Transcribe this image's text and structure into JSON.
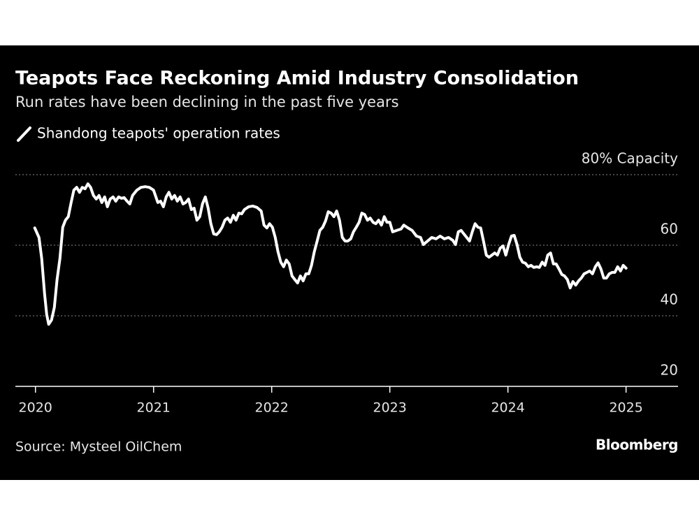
{
  "chart_data": {
    "type": "line",
    "title": "Teapots Face Reckoning Amid Industry Consolidation",
    "subtitle": "Run rates have been declining in the past five years",
    "source": "Source: Mysteel OilChem",
    "logo": "Bloomberg",
    "xlim": [
      2019.83,
      2025.44
    ],
    "xticks": [
      2020,
      2021,
      2022,
      2023,
      2024,
      2025
    ],
    "ylim": [
      20,
      80
    ],
    "yticks": [
      20,
      40,
      60,
      {
        "value": 80,
        "label": "80% Capacity"
      }
    ],
    "grid": true,
    "x": [
      2019.994,
      2020.03,
      2020.053,
      2020.077,
      2020.095,
      2020.112,
      2020.136,
      2020.16,
      2020.183,
      2020.207,
      2020.231,
      2020.254,
      2020.278,
      2020.302,
      2020.325,
      2020.349,
      2020.373,
      2020.396,
      2020.42,
      2020.444,
      2020.467,
      2020.491,
      2020.515,
      2020.538,
      2020.562,
      2020.586,
      2020.609,
      2020.633,
      2020.657,
      2020.68,
      2020.704,
      2020.728,
      2020.751,
      2020.775,
      2020.799,
      2020.822,
      2020.858,
      2020.893,
      2020.929,
      2020.964,
      2021.0,
      2021.036,
      2021.059,
      2021.083,
      2021.107,
      2021.13,
      2021.154,
      2021.178,
      2021.201,
      2021.225,
      2021.249,
      2021.272,
      2021.296,
      2021.32,
      2021.343,
      2021.367,
      2021.391,
      2021.414,
      2021.438,
      2021.462,
      2021.485,
      2021.509,
      2021.533,
      2021.556,
      2021.58,
      2021.604,
      2021.627,
      2021.651,
      2021.675,
      2021.698,
      2021.722,
      2021.746,
      2021.769,
      2021.805,
      2021.84,
      2021.876,
      2021.911,
      2021.935,
      2021.959,
      2021.982,
      2022.006,
      2022.03,
      2022.053,
      2022.077,
      2022.101,
      2022.124,
      2022.148,
      2022.172,
      2022.195,
      2022.219,
      2022.243,
      2022.266,
      2022.29,
      2022.314,
      2022.337,
      2022.361,
      2022.385,
      2022.408,
      2022.432,
      2022.456,
      2022.479,
      2022.503,
      2022.527,
      2022.55,
      2022.574,
      2022.598,
      2022.621,
      2022.645,
      2022.669,
      2022.692,
      2022.716,
      2022.74,
      2022.763,
      2022.787,
      2022.811,
      2022.834,
      2022.858,
      2022.882,
      2022.905,
      2022.929,
      2022.953,
      2022.976,
      2023.0,
      2023.024,
      2023.059,
      2023.095,
      2023.118,
      2023.154,
      2023.189,
      2023.225,
      2023.26,
      2023.284,
      2023.32,
      2023.355,
      2023.391,
      2023.426,
      2023.462,
      2023.497,
      2023.533,
      2023.556,
      2023.58,
      2023.604,
      2023.627,
      2023.651,
      2023.675,
      2023.698,
      2023.722,
      2023.746,
      2023.769,
      2023.793,
      2023.817,
      2023.84,
      2023.864,
      2023.888,
      2023.911,
      2023.935,
      2023.959,
      2023.982,
      2024.006,
      2024.03,
      2024.053,
      2024.077,
      2024.101,
      2024.124,
      2024.148,
      2024.172,
      2024.195,
      2024.219,
      2024.243,
      2024.266,
      2024.29,
      2024.314,
      2024.337,
      2024.361,
      2024.385,
      2024.408,
      2024.432,
      2024.456,
      2024.479,
      2024.503,
      2024.527,
      2024.55,
      2024.574,
      2024.598,
      2024.621,
      2024.645,
      2024.669,
      2024.692,
      2024.716,
      2024.74,
      2024.763,
      2024.787,
      2024.811,
      2024.834,
      2024.858,
      2024.882,
      2024.905,
      2024.929,
      2024.953,
      2024.976,
      2025.0
    ],
    "series": [
      {
        "name": "Shandong teapots' operation rates",
        "color": "#ffffff",
        "values": [
          64.9,
          62.2,
          56.2,
          46.3,
          40.4,
          37.6,
          38.8,
          42.4,
          50.3,
          56.2,
          65.1,
          67.1,
          68.1,
          72.1,
          75.6,
          76.4,
          75.0,
          76.4,
          76.0,
          77.4,
          76.4,
          74.1,
          73.1,
          74.1,
          72.1,
          73.7,
          70.9,
          73.1,
          73.7,
          72.5,
          73.7,
          73.3,
          73.5,
          72.5,
          71.7,
          74.1,
          75.6,
          76.4,
          76.6,
          76.4,
          75.6,
          72.1,
          72.5,
          70.9,
          73.7,
          75.0,
          73.1,
          74.1,
          72.5,
          73.7,
          71.7,
          72.1,
          73.1,
          70.1,
          70.5,
          67.1,
          68.1,
          71.7,
          73.7,
          70.5,
          66.1,
          63.2,
          63.0,
          63.8,
          65.1,
          67.1,
          67.7,
          66.5,
          68.5,
          67.1,
          69.1,
          68.9,
          70.1,
          70.9,
          71.1,
          70.7,
          69.7,
          65.7,
          64.9,
          66.1,
          65.1,
          62.2,
          58.2,
          55.2,
          53.9,
          55.8,
          54.7,
          51.3,
          50.3,
          49.3,
          51.3,
          49.9,
          51.9,
          51.9,
          54.3,
          58.2,
          61.2,
          64.2,
          65.1,
          66.9,
          69.5,
          69.1,
          68.1,
          69.7,
          67.1,
          62.2,
          61.2,
          61.2,
          61.8,
          63.8,
          65.1,
          66.5,
          69.1,
          68.7,
          67.1,
          67.7,
          66.5,
          66.1,
          67.1,
          65.7,
          68.1,
          66.5,
          66.5,
          63.8,
          64.2,
          64.6,
          65.7,
          64.9,
          64.2,
          62.6,
          62.2,
          60.2,
          61.2,
          62.2,
          61.8,
          62.6,
          61.8,
          62.2,
          61.4,
          60.2,
          63.8,
          64.2,
          63.2,
          62.2,
          61.2,
          63.8,
          66.1,
          65.1,
          64.9,
          61.2,
          57.2,
          56.6,
          57.2,
          57.8,
          57.2,
          59.2,
          59.8,
          57.2,
          60.2,
          62.6,
          62.8,
          60.2,
          56.6,
          55.2,
          54.9,
          53.9,
          54.3,
          53.7,
          53.9,
          53.7,
          55.2,
          54.3,
          57.2,
          57.8,
          54.7,
          54.7,
          53.3,
          51.7,
          51.3,
          50.3,
          47.9,
          49.7,
          48.7,
          49.9,
          50.7,
          51.9,
          52.3,
          52.7,
          51.9,
          53.9,
          55.0,
          53.3,
          50.7,
          50.7,
          51.9,
          52.3,
          52.3,
          53.9,
          52.7,
          54.3,
          53.5
        ]
      }
    ]
  }
}
